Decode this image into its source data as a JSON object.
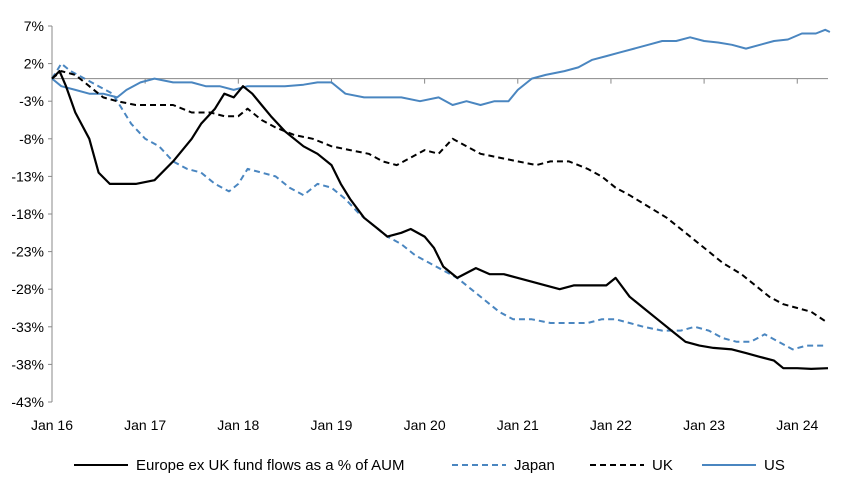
{
  "chart_data": {
    "type": "line",
    "title": "",
    "xlabel": "",
    "ylabel": "",
    "ylim": [
      -43,
      7
    ],
    "y_ticks": [
      "7%",
      "2%",
      "-3%",
      "-8%",
      "-13%",
      "-18%",
      "-23%",
      "-28%",
      "-33%",
      "-38%",
      "-43%"
    ],
    "y_tick_values": [
      7,
      2,
      -3,
      -8,
      -13,
      -18,
      -23,
      -28,
      -33,
      -38,
      -43
    ],
    "x_ticks": [
      "Jan 16",
      "Jan 17",
      "Jan 18",
      "Jan 19",
      "Jan 20",
      "Jan 21",
      "Jan 22",
      "Jan 23",
      "Jan 24"
    ],
    "x_tick_values": [
      2016,
      2017,
      2018,
      2019,
      2020,
      2021,
      2022,
      2023,
      2024
    ],
    "xlim": [
      2016,
      2024.33
    ],
    "grid": false,
    "legend_position": "bottom",
    "series": [
      {
        "name": "Europe ex UK fund flows as a % of AUM",
        "color": "#000000",
        "style": "solid",
        "points": [
          [
            2016.0,
            0
          ],
          [
            2016.08,
            1
          ],
          [
            2016.15,
            -1
          ],
          [
            2016.25,
            -4.5
          ],
          [
            2016.4,
            -8
          ],
          [
            2016.5,
            -12.5
          ],
          [
            2016.62,
            -14
          ],
          [
            2016.75,
            -14
          ],
          [
            2016.9,
            -14
          ],
          [
            2017.1,
            -13.5
          ],
          [
            2017.3,
            -11
          ],
          [
            2017.5,
            -8
          ],
          [
            2017.6,
            -6
          ],
          [
            2017.75,
            -4
          ],
          [
            2017.85,
            -2
          ],
          [
            2017.95,
            -2.5
          ],
          [
            2018.05,
            -1
          ],
          [
            2018.15,
            -2
          ],
          [
            2018.25,
            -3.5
          ],
          [
            2018.35,
            -5
          ],
          [
            2018.5,
            -7
          ],
          [
            2018.7,
            -9
          ],
          [
            2018.85,
            -10
          ],
          [
            2019.0,
            -11.5
          ],
          [
            2019.1,
            -14
          ],
          [
            2019.2,
            -16
          ],
          [
            2019.35,
            -18.5
          ],
          [
            2019.5,
            -20
          ],
          [
            2019.6,
            -21
          ],
          [
            2019.75,
            -20.5
          ],
          [
            2019.85,
            -20
          ],
          [
            2020.0,
            -21
          ],
          [
            2020.1,
            -22.5
          ],
          [
            2020.2,
            -25
          ],
          [
            2020.35,
            -26.5
          ],
          [
            2020.55,
            -25.2
          ],
          [
            2020.7,
            -26
          ],
          [
            2020.85,
            -26
          ],
          [
            2021.0,
            -26.5
          ],
          [
            2021.15,
            -27
          ],
          [
            2021.3,
            -27.5
          ],
          [
            2021.45,
            -28
          ],
          [
            2021.6,
            -27.5
          ],
          [
            2021.75,
            -27.5
          ],
          [
            2021.95,
            -27.5
          ],
          [
            2022.05,
            -26.5
          ],
          [
            2022.2,
            -29
          ],
          [
            2022.35,
            -30.5
          ],
          [
            2022.5,
            -32
          ],
          [
            2022.65,
            -33.5
          ],
          [
            2022.8,
            -35
          ],
          [
            2022.95,
            -35.5
          ],
          [
            2023.1,
            -35.8
          ],
          [
            2023.3,
            -36
          ],
          [
            2023.45,
            -36.5
          ],
          [
            2023.6,
            -37
          ],
          [
            2023.75,
            -37.5
          ],
          [
            2023.85,
            -38.5
          ],
          [
            2024.0,
            -38.5
          ],
          [
            2024.15,
            -38.6
          ],
          [
            2024.33,
            -38.5
          ]
        ]
      },
      {
        "name": "Japan",
        "color": "#4a86c0",
        "style": "dashed",
        "points": [
          [
            2016.0,
            0
          ],
          [
            2016.1,
            2
          ],
          [
            2016.2,
            1
          ],
          [
            2016.35,
            0
          ],
          [
            2016.5,
            -1
          ],
          [
            2016.65,
            -2
          ],
          [
            2016.75,
            -4
          ],
          [
            2016.85,
            -6
          ],
          [
            2017.0,
            -8
          ],
          [
            2017.15,
            -9
          ],
          [
            2017.3,
            -11
          ],
          [
            2017.45,
            -12
          ],
          [
            2017.6,
            -12.5
          ],
          [
            2017.75,
            -14
          ],
          [
            2017.9,
            -15
          ],
          [
            2018.0,
            -14
          ],
          [
            2018.1,
            -12
          ],
          [
            2018.25,
            -12.5
          ],
          [
            2018.4,
            -13
          ],
          [
            2018.55,
            -14.5
          ],
          [
            2018.7,
            -15.5
          ],
          [
            2018.85,
            -14
          ],
          [
            2019.0,
            -14.5
          ],
          [
            2019.15,
            -16
          ],
          [
            2019.3,
            -18
          ],
          [
            2019.45,
            -19.5
          ],
          [
            2019.6,
            -21
          ],
          [
            2019.75,
            -22
          ],
          [
            2019.9,
            -23.5
          ],
          [
            2020.05,
            -24.5
          ],
          [
            2020.2,
            -25.5
          ],
          [
            2020.35,
            -26.5
          ],
          [
            2020.5,
            -28
          ],
          [
            2020.65,
            -29.5
          ],
          [
            2020.8,
            -31
          ],
          [
            2020.95,
            -32
          ],
          [
            2021.15,
            -32
          ],
          [
            2021.35,
            -32.5
          ],
          [
            2021.55,
            -32.5
          ],
          [
            2021.75,
            -32.5
          ],
          [
            2021.9,
            -32
          ],
          [
            2022.05,
            -32
          ],
          [
            2022.2,
            -32.5
          ],
          [
            2022.35,
            -33
          ],
          [
            2022.55,
            -33.5
          ],
          [
            2022.75,
            -33.5
          ],
          [
            2022.9,
            -33
          ],
          [
            2023.05,
            -33.5
          ],
          [
            2023.2,
            -34.5
          ],
          [
            2023.35,
            -35
          ],
          [
            2023.5,
            -35
          ],
          [
            2023.65,
            -34
          ],
          [
            2023.8,
            -35
          ],
          [
            2023.95,
            -36
          ],
          [
            2024.1,
            -35.5
          ],
          [
            2024.3,
            -35.5
          ]
        ]
      },
      {
        "name": "UK",
        "color": "#000000",
        "style": "dashed",
        "points": [
          [
            2016.0,
            0
          ],
          [
            2016.1,
            1
          ],
          [
            2016.25,
            0.5
          ],
          [
            2016.4,
            -1
          ],
          [
            2016.55,
            -2.5
          ],
          [
            2016.7,
            -3
          ],
          [
            2016.9,
            -3.5
          ],
          [
            2017.1,
            -3.5
          ],
          [
            2017.3,
            -3.5
          ],
          [
            2017.5,
            -4.5
          ],
          [
            2017.7,
            -4.5
          ],
          [
            2017.85,
            -5
          ],
          [
            2018.0,
            -5
          ],
          [
            2018.1,
            -4
          ],
          [
            2018.25,
            -5.5
          ],
          [
            2018.4,
            -6.5
          ],
          [
            2018.6,
            -7.5
          ],
          [
            2018.8,
            -8
          ],
          [
            2019.0,
            -9
          ],
          [
            2019.2,
            -9.5
          ],
          [
            2019.4,
            -10
          ],
          [
            2019.55,
            -11
          ],
          [
            2019.7,
            -11.5
          ],
          [
            2019.85,
            -10.5
          ],
          [
            2020.0,
            -9.5
          ],
          [
            2020.15,
            -10
          ],
          [
            2020.3,
            -8
          ],
          [
            2020.45,
            -9
          ],
          [
            2020.6,
            -10
          ],
          [
            2020.8,
            -10.5
          ],
          [
            2021.0,
            -11
          ],
          [
            2021.2,
            -11.5
          ],
          [
            2021.35,
            -11
          ],
          [
            2021.55,
            -11
          ],
          [
            2021.75,
            -12
          ],
          [
            2021.9,
            -13
          ],
          [
            2022.05,
            -14.5
          ],
          [
            2022.2,
            -15.5
          ],
          [
            2022.4,
            -17
          ],
          [
            2022.6,
            -18.5
          ],
          [
            2022.75,
            -20
          ],
          [
            2022.9,
            -21.5
          ],
          [
            2023.05,
            -23
          ],
          [
            2023.2,
            -24.5
          ],
          [
            2023.4,
            -26
          ],
          [
            2023.55,
            -27.5
          ],
          [
            2023.7,
            -29
          ],
          [
            2023.85,
            -30
          ],
          [
            2024.0,
            -30.5
          ],
          [
            2024.15,
            -31
          ],
          [
            2024.33,
            -32.5
          ]
        ]
      },
      {
        "name": "US",
        "color": "#4a86c0",
        "style": "solid",
        "points": [
          [
            2016.0,
            0
          ],
          [
            2016.1,
            -1
          ],
          [
            2016.25,
            -1.5
          ],
          [
            2016.4,
            -2
          ],
          [
            2016.55,
            -2
          ],
          [
            2016.7,
            -2.5
          ],
          [
            2016.8,
            -1.5
          ],
          [
            2016.95,
            -0.5
          ],
          [
            2017.1,
            0
          ],
          [
            2017.3,
            -0.5
          ],
          [
            2017.5,
            -0.5
          ],
          [
            2017.65,
            -1
          ],
          [
            2017.8,
            -1
          ],
          [
            2017.95,
            -1.5
          ],
          [
            2018.1,
            -1
          ],
          [
            2018.3,
            -1
          ],
          [
            2018.5,
            -1
          ],
          [
            2018.7,
            -0.8
          ],
          [
            2018.85,
            -0.5
          ],
          [
            2019.0,
            -0.5
          ],
          [
            2019.15,
            -2
          ],
          [
            2019.35,
            -2.5
          ],
          [
            2019.55,
            -2.5
          ],
          [
            2019.75,
            -2.5
          ],
          [
            2019.95,
            -3
          ],
          [
            2020.15,
            -2.5
          ],
          [
            2020.3,
            -3.5
          ],
          [
            2020.45,
            -3
          ],
          [
            2020.6,
            -3.5
          ],
          [
            2020.75,
            -3
          ],
          [
            2020.9,
            -3
          ],
          [
            2021.0,
            -1.5
          ],
          [
            2021.15,
            0
          ],
          [
            2021.3,
            0.5
          ],
          [
            2021.5,
            1
          ],
          [
            2021.65,
            1.5
          ],
          [
            2021.8,
            2.5
          ],
          [
            2021.95,
            3
          ],
          [
            2022.1,
            3.5
          ],
          [
            2022.25,
            4
          ],
          [
            2022.4,
            4.5
          ],
          [
            2022.55,
            5
          ],
          [
            2022.7,
            5
          ],
          [
            2022.85,
            5.5
          ],
          [
            2023.0,
            5
          ],
          [
            2023.15,
            4.8
          ],
          [
            2023.3,
            4.5
          ],
          [
            2023.45,
            4
          ],
          [
            2023.6,
            4.5
          ],
          [
            2023.75,
            5
          ],
          [
            2023.9,
            5.2
          ],
          [
            2024.05,
            6
          ],
          [
            2024.2,
            6
          ],
          [
            2024.3,
            6.5
          ],
          [
            2024.35,
            6.2
          ]
        ]
      }
    ]
  }
}
